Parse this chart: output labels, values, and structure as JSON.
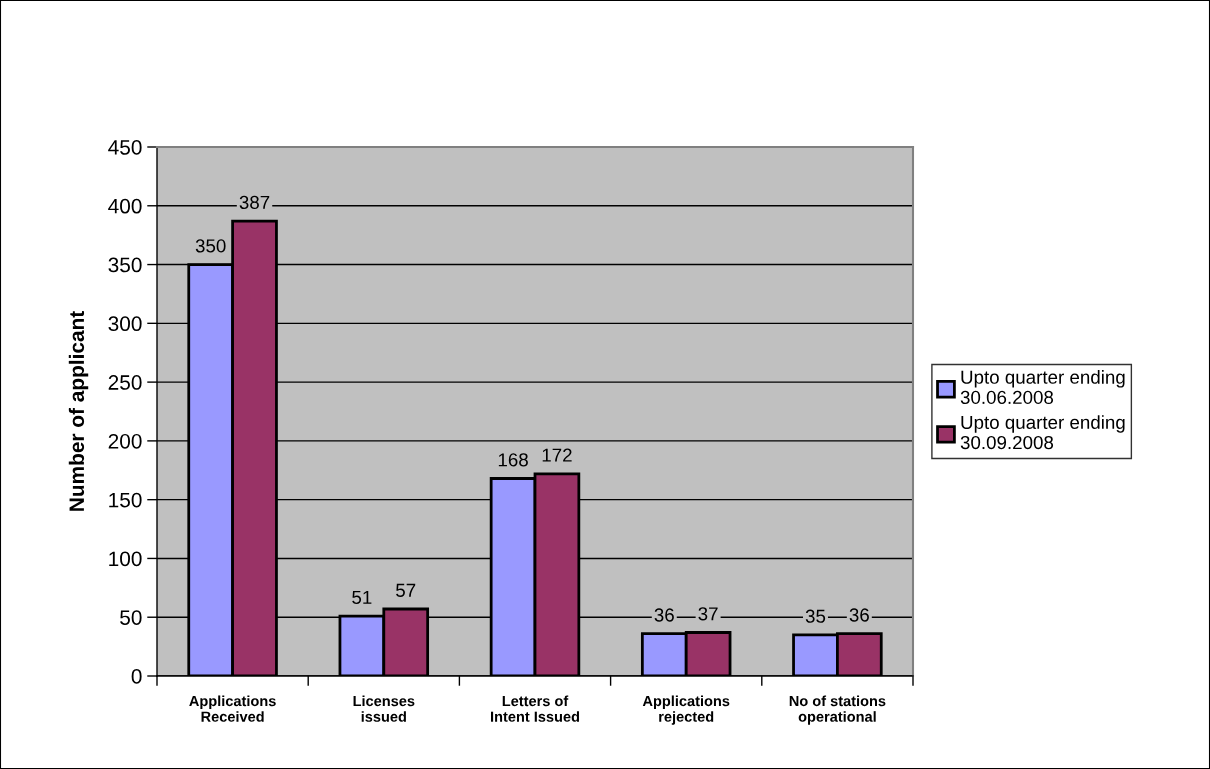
{
  "chart_data": {
    "type": "bar",
    "ylabel": "Number of applicant",
    "categories": [
      "Applications\nReceived",
      "Licenses\nissued",
      "Letters of\nIntent Issued",
      "Applications\nrejected",
      "No of stations\noperational"
    ],
    "series": [
      {
        "name": "Upto quarter ending\n30.06.2008",
        "color": "#9999ff",
        "values": [
          350,
          51,
          168,
          36,
          35
        ]
      },
      {
        "name": "Upto quarter ending\n30.09.2008",
        "color": "#993366",
        "values": [
          387,
          57,
          172,
          37,
          36
        ]
      }
    ],
    "ylim": [
      0,
      450
    ],
    "yticks": [
      0,
      50,
      100,
      150,
      200,
      250,
      300,
      350,
      400,
      450
    ],
    "grid": "y",
    "legend": "right",
    "data_labels": true
  }
}
